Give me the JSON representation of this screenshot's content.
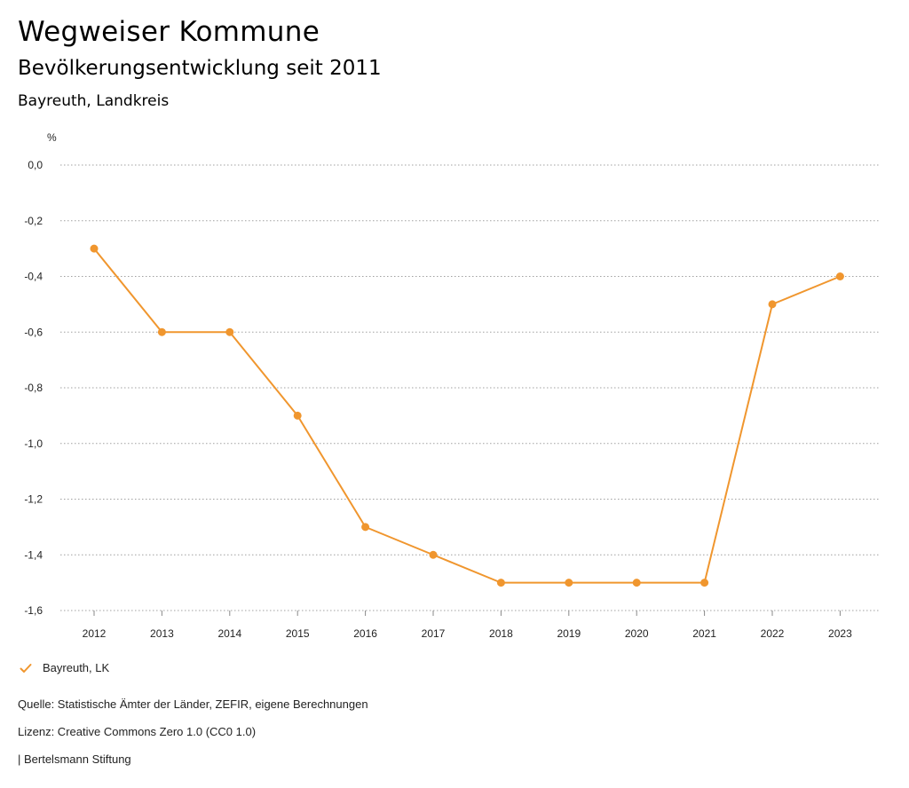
{
  "header": {
    "title": "Wegweiser Kommune",
    "subtitle": "Bevölkerungsentwicklung seit 2011",
    "region": "Bayreuth, Landkreis"
  },
  "chart_data": {
    "type": "line",
    "ylabel": "%",
    "ylim": [
      -1.6,
      0.0
    ],
    "yticks": [
      0.0,
      -0.2,
      -0.4,
      -0.6,
      -0.8,
      -1.0,
      -1.2,
      -1.4,
      -1.6
    ],
    "ytick_labels": [
      "0,0",
      "-0,2",
      "-0,4",
      "-0,6",
      "-0,8",
      "-1,0",
      "-1,2",
      "-1,4",
      "-1,6"
    ],
    "categories": [
      "2012",
      "2013",
      "2014",
      "2015",
      "2016",
      "2017",
      "2018",
      "2019",
      "2020",
      "2021",
      "2022",
      "2023"
    ],
    "series": [
      {
        "name": "Bayreuth, LK",
        "color": "#f0962e",
        "values": [
          -0.3,
          -0.6,
          -0.6,
          -0.9,
          -1.3,
          -1.4,
          -1.5,
          -1.5,
          -1.5,
          -1.5,
          -0.5,
          -0.4
        ]
      }
    ],
    "grid": true,
    "legend": "bottom-left"
  },
  "legend": {
    "label": "Bayreuth, LK",
    "icon": "check-icon"
  },
  "footer": {
    "source": "Quelle: Statistische Ämter der Länder, ZEFIR, eigene Berechnungen",
    "license": "Lizenz: Creative Commons Zero 1.0 (CC0 1.0)",
    "publisher": "| Bertelsmann Stiftung"
  }
}
